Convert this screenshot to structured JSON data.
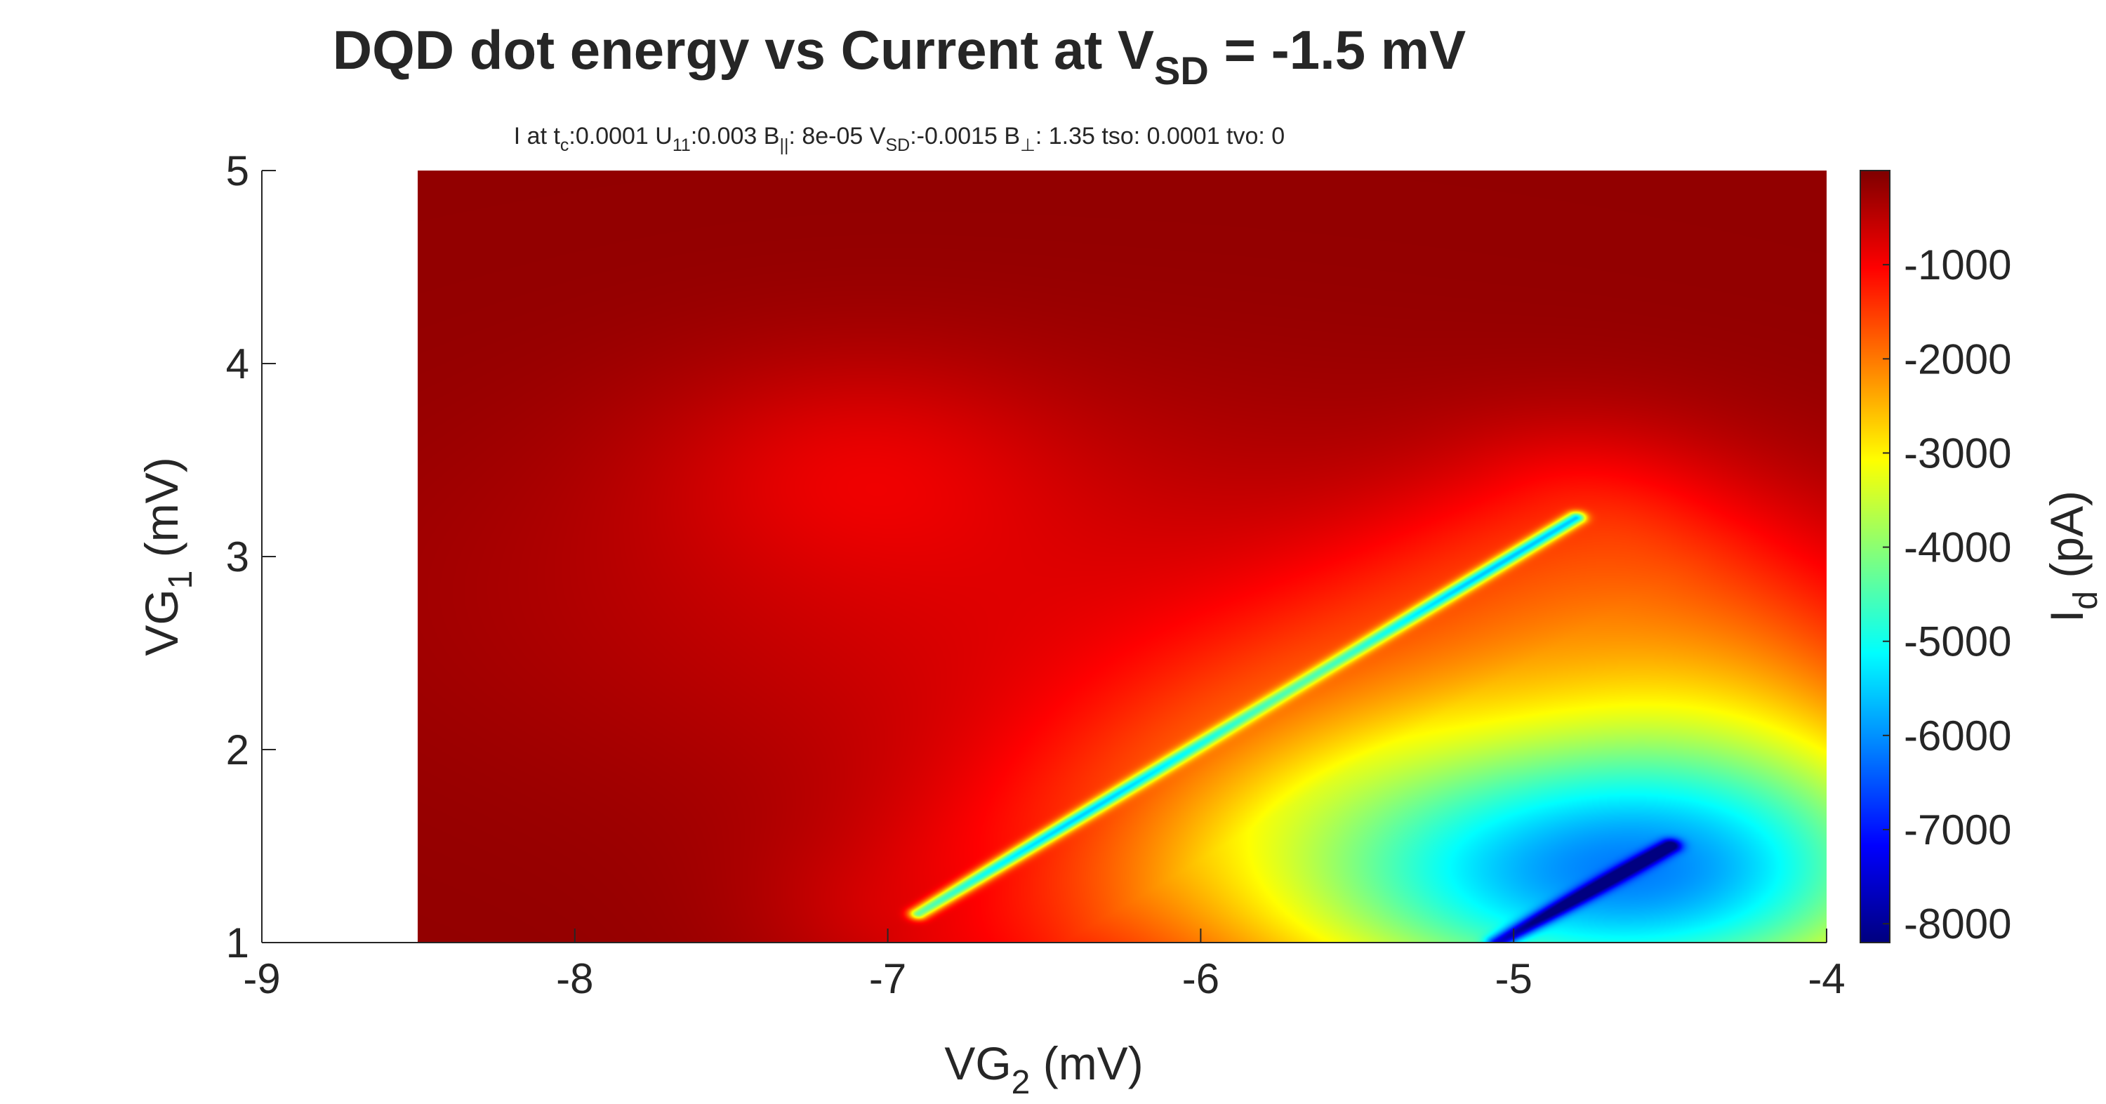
{
  "chart_data": {
    "type": "heatmap",
    "title": {
      "pre": "DQD dot energy vs Current at V",
      "sub": "SD",
      "post": " = -1.5 mV"
    },
    "subtitle": {
      "p1": "I at t",
      "s1": "c",
      "p2": ":0.0001 U",
      "s2": "11",
      "p3": ":0.003 B",
      "s3": "||",
      "p4": ": 8e-05 V",
      "s4": "SD",
      "p5": ":-0.0015 B",
      "s5": "⊥",
      "p6": ": 1.35 tso: 0.0001 tvo: 0"
    },
    "xlabel": {
      "pre": "VG",
      "sub": "2",
      "post": " (mV)"
    },
    "ylabel": {
      "pre": "VG",
      "sub": "1",
      "post": " (mV)"
    },
    "colorbar_label": {
      "pre": "I",
      "sub": "d",
      "post": " (pA)"
    },
    "xlim": [
      -9,
      -4
    ],
    "ylim": [
      1,
      5
    ],
    "data_x_range": [
      -8.5,
      -4
    ],
    "xticks": [
      -9,
      -8,
      -7,
      -6,
      -5,
      -4
    ],
    "yticks": [
      1,
      2,
      3,
      4,
      5
    ],
    "colorbar_range": [
      -8200,
      0
    ],
    "colorbar_ticks": [
      -1000,
      -2000,
      -3000,
      -4000,
      -5000,
      -6000,
      -7000,
      -8000
    ],
    "colormap": "jet",
    "features": {
      "background_current_pA": -150,
      "resonance_line": {
        "from": [
          -6.9,
          1.15
        ],
        "to": [
          -4.8,
          3.2
        ],
        "peak_current_pA": -5000
      },
      "blue_band": {
        "from": [
          -5.05,
          1.0
        ],
        "to": [
          -4.5,
          1.5
        ],
        "peak_current_pA": -8000
      }
    }
  }
}
